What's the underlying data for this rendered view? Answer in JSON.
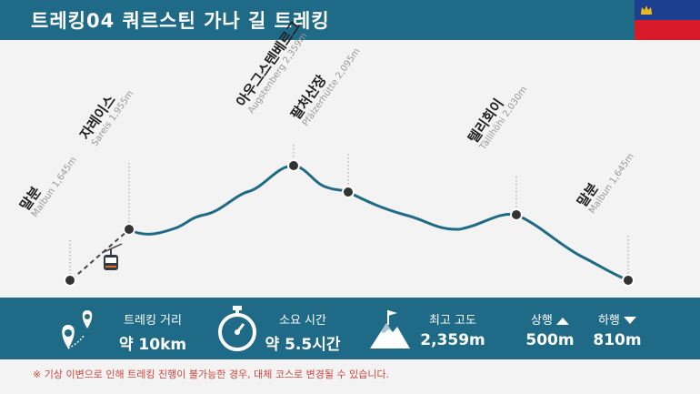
{
  "header": {
    "title": "트레킹04  쿼르스틴 가나 길 트레킹"
  },
  "waypoints": [
    {
      "name": "말분",
      "sub": "Malbun 1,645m"
    },
    {
      "name": "자레이스",
      "sub": "Sareis 1,955m"
    },
    {
      "name": "아우그스텐베르그",
      "sub": "Augstenberg 2,359m"
    },
    {
      "name": "팔처산장",
      "sub": "Pfälzerhütte 2,095m"
    },
    {
      "name": "텔리회이",
      "sub": "Tällihöhi 2,030m"
    },
    {
      "name": "말분",
      "sub": "Malbun 1,645m"
    }
  ],
  "stats": {
    "distance": {
      "label": "트레킹 거리",
      "value": "약 10km"
    },
    "duration": {
      "label": "소요 시간",
      "value": "약 5.5시간"
    },
    "max_altitude": {
      "label": "최고 고도",
      "value": "2,359m"
    },
    "ascent": {
      "label": "상행",
      "value": "500m"
    },
    "descent": {
      "label": "하행",
      "value": "810m"
    }
  },
  "note": "※ 기상 이변으로 인해 트레킹 진행이 불가능한 경우, 대체 코스로 변경될 수 있습니다.",
  "colors": {
    "accent": "#1f6a86",
    "route": "#1f6a86",
    "note": "#d0443c"
  },
  "icons": [
    "liechtenstein-flag-icon",
    "gondola-icon",
    "map-pin-icon",
    "stopwatch-icon",
    "mountain-peak-icon",
    "arrow-up-icon",
    "arrow-down-icon"
  ]
}
